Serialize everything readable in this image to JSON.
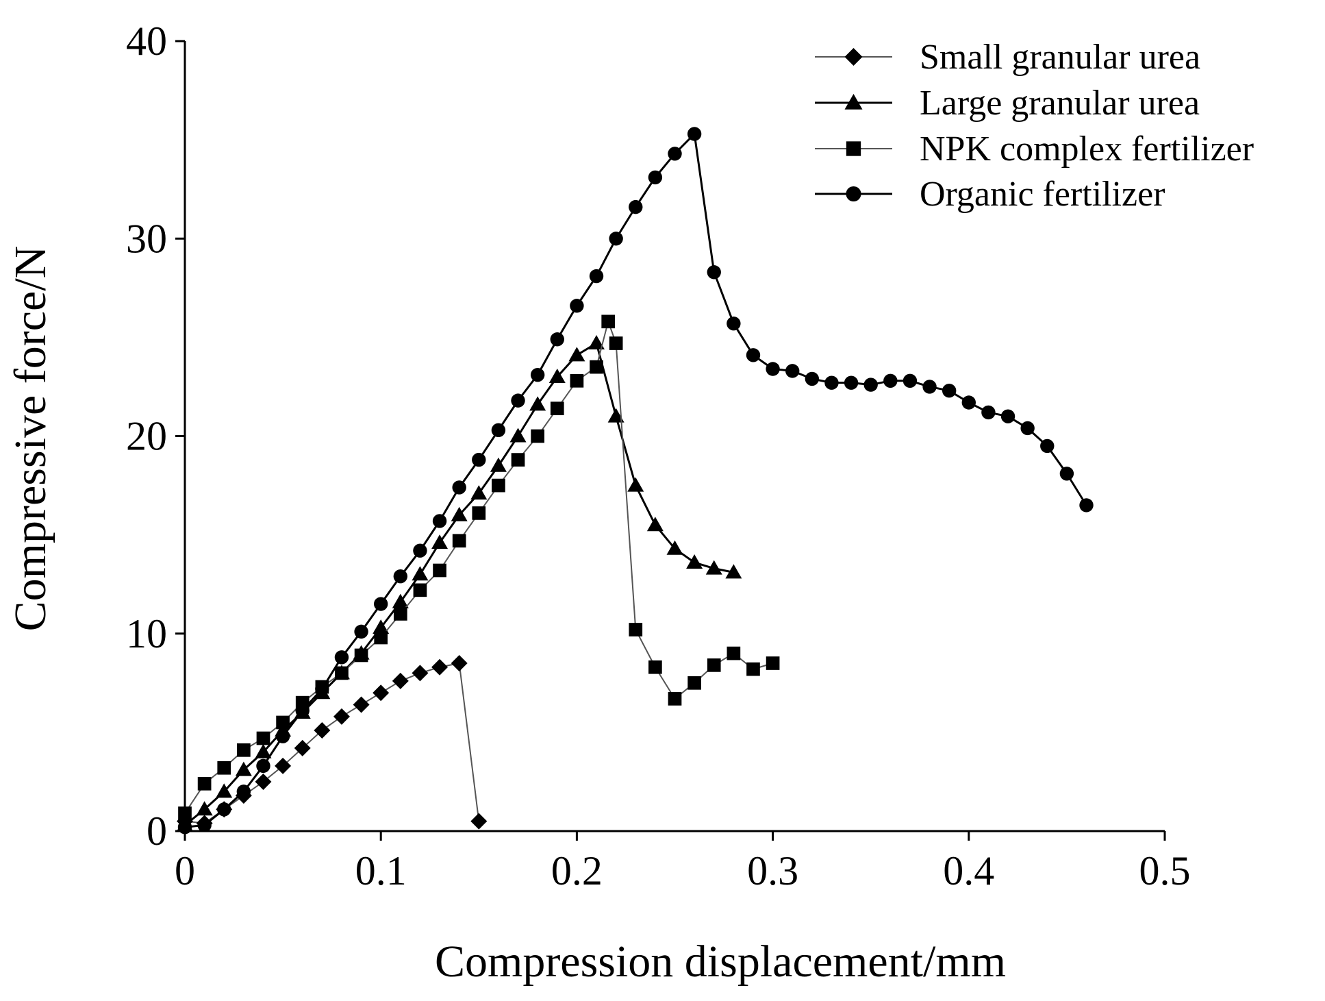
{
  "chart_data": {
    "type": "line",
    "title": "",
    "xlabel": "Compression displacement/mm",
    "ylabel": "Compressive force/N",
    "xlim": [
      0,
      0.5
    ],
    "ylim": [
      0,
      40
    ],
    "xticks": [
      0,
      0.1,
      0.2,
      0.3,
      0.4,
      0.5
    ],
    "xtick_labels": [
      "0",
      "0.1",
      "0.2",
      "0.3",
      "0.4",
      "0.5"
    ],
    "yticks": [
      0,
      10,
      20,
      30,
      40
    ],
    "ytick_labels": [
      "0",
      "10",
      "20",
      "30",
      "40"
    ],
    "grid": false,
    "legend_position": "top-right",
    "series": [
      {
        "name": "Small granular urea",
        "marker": "diamond",
        "line": "#555555",
        "x": [
          0.0,
          0.01,
          0.02,
          0.03,
          0.04,
          0.05,
          0.06,
          0.07,
          0.08,
          0.09,
          0.1,
          0.11,
          0.12,
          0.13,
          0.14,
          0.15
        ],
        "y": [
          0.5,
          0.4,
          1.1,
          1.8,
          2.5,
          3.3,
          4.2,
          5.1,
          5.8,
          6.4,
          7.0,
          7.6,
          8.0,
          8.3,
          8.5,
          0.5
        ]
      },
      {
        "name": "Large granular urea",
        "marker": "triangle",
        "line": "#000000",
        "x": [
          0.0,
          0.01,
          0.02,
          0.03,
          0.04,
          0.05,
          0.06,
          0.07,
          0.08,
          0.09,
          0.1,
          0.11,
          0.12,
          0.13,
          0.14,
          0.15,
          0.16,
          0.17,
          0.18,
          0.19,
          0.2,
          0.21,
          0.22,
          0.23,
          0.24,
          0.25,
          0.26,
          0.27,
          0.28
        ],
        "y": [
          0.3,
          1.1,
          2.0,
          3.1,
          4.0,
          5.1,
          6.0,
          7.0,
          8.0,
          9.0,
          10.3,
          11.6,
          13.0,
          14.6,
          16.0,
          17.1,
          18.5,
          20.0,
          21.6,
          23.0,
          24.1,
          24.7,
          21.0,
          17.5,
          15.5,
          14.3,
          13.6,
          13.3,
          13.1
        ]
      },
      {
        "name": "NPK complex fertilizer",
        "marker": "square",
        "line": "#555555",
        "x": [
          0.0,
          0.01,
          0.02,
          0.03,
          0.04,
          0.05,
          0.06,
          0.07,
          0.08,
          0.09,
          0.1,
          0.11,
          0.12,
          0.13,
          0.14,
          0.15,
          0.16,
          0.17,
          0.18,
          0.19,
          0.2,
          0.21,
          0.216,
          0.22,
          0.23,
          0.24,
          0.25,
          0.26,
          0.27,
          0.28,
          0.29,
          0.3
        ],
        "y": [
          0.9,
          2.4,
          3.2,
          4.1,
          4.7,
          5.5,
          6.5,
          7.3,
          8.0,
          8.9,
          9.8,
          11.0,
          12.2,
          13.2,
          14.7,
          16.1,
          17.5,
          18.8,
          20.0,
          21.4,
          22.8,
          23.5,
          25.8,
          24.7,
          10.2,
          8.3,
          6.7,
          7.5,
          8.4,
          9.0,
          8.2,
          8.5
        ]
      },
      {
        "name": "Organic fertilizer",
        "marker": "circle",
        "line": "#000000",
        "x": [
          0.0,
          0.01,
          0.02,
          0.03,
          0.04,
          0.05,
          0.06,
          0.07,
          0.08,
          0.09,
          0.1,
          0.11,
          0.12,
          0.13,
          0.14,
          0.15,
          0.16,
          0.17,
          0.18,
          0.19,
          0.2,
          0.21,
          0.22,
          0.23,
          0.24,
          0.25,
          0.26,
          0.27,
          0.28,
          0.29,
          0.3,
          0.31,
          0.32,
          0.33,
          0.34,
          0.35,
          0.36,
          0.37,
          0.38,
          0.39,
          0.4,
          0.41,
          0.42,
          0.43,
          0.44,
          0.45,
          0.46
        ],
        "y": [
          0.2,
          0.3,
          1.1,
          2.0,
          3.3,
          4.8,
          6.1,
          7.2,
          8.8,
          10.1,
          11.5,
          12.9,
          14.2,
          15.7,
          17.4,
          18.8,
          20.3,
          21.8,
          23.1,
          24.9,
          26.6,
          28.1,
          30.0,
          31.6,
          33.1,
          34.3,
          35.3,
          28.3,
          25.7,
          24.1,
          23.4,
          23.3,
          22.9,
          22.7,
          22.7,
          22.6,
          22.8,
          22.8,
          22.5,
          22.3,
          21.7,
          21.2,
          21.0,
          20.4,
          19.5,
          18.1,
          16.5
        ]
      }
    ]
  }
}
